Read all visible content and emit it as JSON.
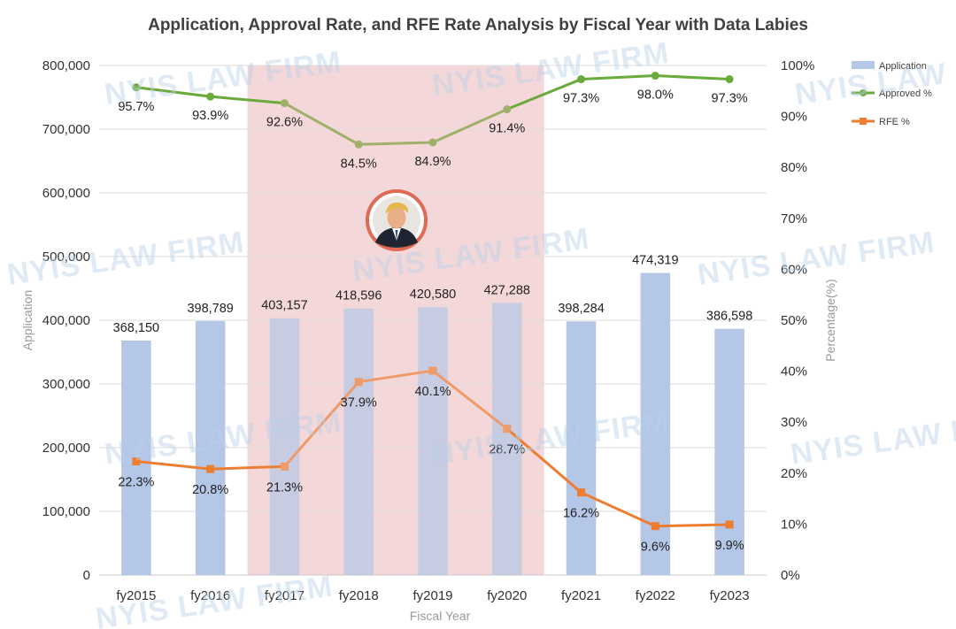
{
  "chart_data": {
    "type": "bar",
    "title": "Application, Approval Rate, and RFE Rate Analysis by Fiscal Year with Data Labies",
    "xlabel": "Fiscal Year",
    "ylabel": "Application",
    "y2label": "Percentage(%)",
    "categories": [
      "fy2015",
      "fy2016",
      "fy2017",
      "fy2018",
      "fy2019",
      "fy2020",
      "fy2021",
      "fy2022",
      "fy2023"
    ],
    "ylim": [
      0,
      800000
    ],
    "y2lim": [
      0,
      100
    ],
    "yticks": [
      "0",
      "100,000",
      "200,000",
      "300,000",
      "400,000",
      "500,000",
      "600,000",
      "700,000",
      "800,000"
    ],
    "y2ticks": [
      "0%",
      "10%",
      "20%",
      "30%",
      "40%",
      "50%",
      "60%",
      "70%",
      "80%",
      "90%",
      "100%"
    ],
    "grid": true,
    "legend_position": "top-right",
    "highlight_range": [
      "fy2017",
      "fy2020"
    ],
    "series": [
      {
        "name": "Application",
        "type": "bar",
        "axis": "left",
        "color": "#b4c7e7",
        "values": [
          368150,
          398789,
          403157,
          418596,
          420580,
          427288,
          398284,
          474319,
          386598
        ],
        "labels": [
          "368,150",
          "398,789",
          "403,157",
          "418,596",
          "420,580",
          "427,288",
          "398,284",
          "474,319",
          "386,598"
        ]
      },
      {
        "name": "Approved %",
        "type": "line",
        "axis": "right",
        "color": "#6aaa3a",
        "highlight_color": "#9eb06a",
        "values": [
          95.7,
          93.9,
          92.6,
          84.5,
          84.9,
          91.4,
          97.3,
          98.0,
          97.3
        ],
        "labels": [
          "95.7%",
          "93.9%",
          "92.6%",
          "84.5%",
          "84.9%",
          "91.4%",
          "97.3%",
          "98.0%",
          "97.3%"
        ]
      },
      {
        "name": "RFE %",
        "type": "line",
        "axis": "right",
        "color": "#ed7d31",
        "highlight_color": "#ef9a6a",
        "values": [
          22.3,
          20.8,
          21.3,
          37.9,
          40.1,
          28.7,
          16.2,
          9.6,
          9.9
        ],
        "labels": [
          "22.3%",
          "20.8%",
          "21.3%",
          "37.9%",
          "40.1%",
          "28.7%",
          "16.2%",
          "9.6%",
          "9.9%"
        ]
      }
    ],
    "watermark_text": "NYIS LAW FIRM",
    "highlight_fill": "#f4d7d8",
    "portrait_ring_color": "#e06a55"
  }
}
